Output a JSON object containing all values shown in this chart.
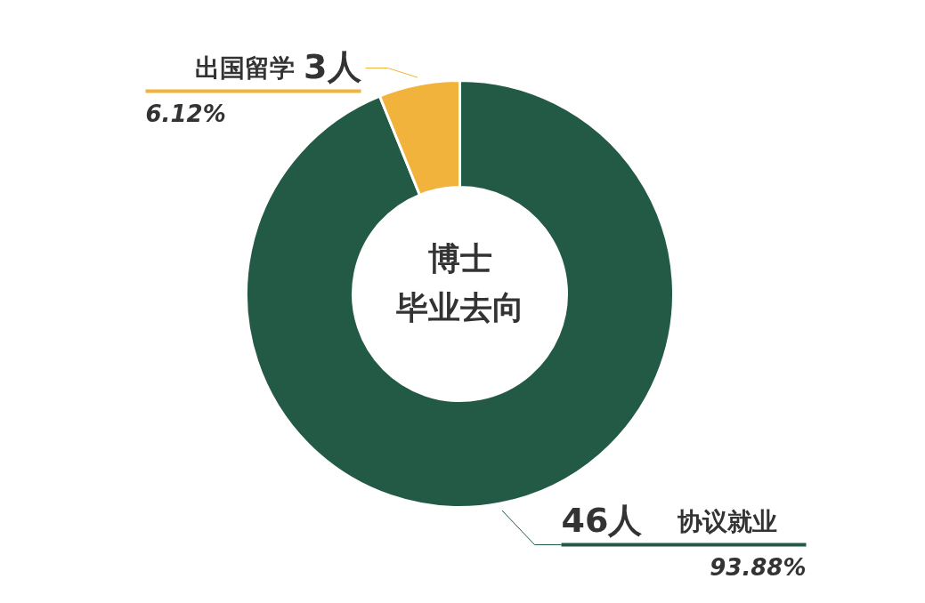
{
  "chart_data": {
    "type": "donut",
    "title": "博士",
    "subtitle": "毕业去向",
    "categories": [
      "协议就业",
      "出国留学"
    ],
    "values": [
      46,
      3
    ],
    "value_labels": [
      "46人",
      "3人"
    ],
    "colors": [
      "#225a45",
      "#f2b33d"
    ],
    "annotations": [
      "93.88%",
      "6.12%"
    ]
  }
}
